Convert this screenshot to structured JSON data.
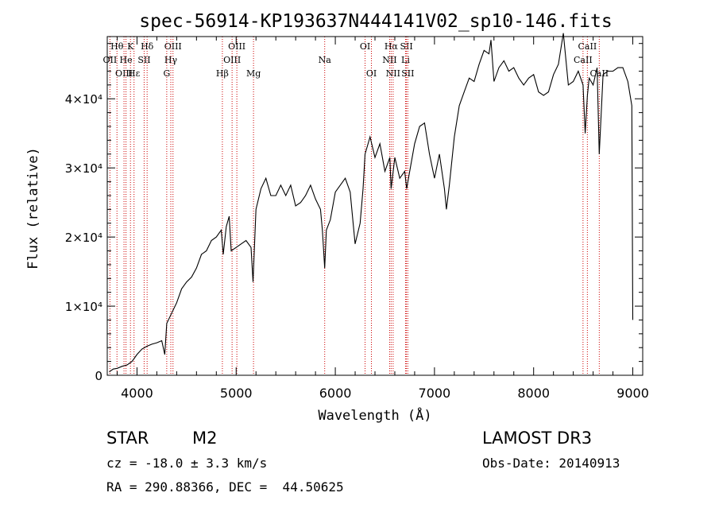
{
  "chart_data": {
    "type": "line",
    "title": "spec-56914-KP193637N444141V02_sp10-146.fits",
    "xlabel": "Wavelength (Å)",
    "ylabel": "Flux (relative)",
    "xlim": [
      3700,
      9100
    ],
    "ylim": [
      0,
      49000
    ],
    "x_ticks": [
      4000,
      5000,
      6000,
      7000,
      8000,
      9000
    ],
    "y_ticks": [
      {
        "value": 0,
        "label": "0"
      },
      {
        "value": 10000,
        "label": "1×10⁴"
      },
      {
        "value": 20000,
        "label": "2×10⁴"
      },
      {
        "value": 30000,
        "label": "3×10⁴"
      },
      {
        "value": 40000,
        "label": "4×10⁴"
      }
    ],
    "series": [
      {
        "name": "flux",
        "x": [
          3720,
          3760,
          3800,
          3850,
          3900,
          3950,
          4000,
          4050,
          4100,
          4150,
          4200,
          4250,
          4280,
          4300,
          4350,
          4400,
          4450,
          4500,
          4550,
          4600,
          4650,
          4700,
          4750,
          4800,
          4850,
          4870,
          4900,
          4930,
          4950,
          5000,
          5050,
          5100,
          5150,
          5170,
          5200,
          5250,
          5300,
          5350,
          5400,
          5450,
          5500,
          5550,
          5600,
          5650,
          5700,
          5750,
          5800,
          5850,
          5870,
          5893,
          5910,
          5950,
          6000,
          6050,
          6100,
          6150,
          6180,
          6200,
          6250,
          6280,
          6300,
          6350,
          6400,
          6450,
          6500,
          6550,
          6563,
          6600,
          6650,
          6700,
          6720,
          6750,
          6800,
          6850,
          6900,
          6950,
          7000,
          7050,
          7100,
          7120,
          7150,
          7200,
          7250,
          7300,
          7350,
          7400,
          7450,
          7500,
          7550,
          7570,
          7600,
          7650,
          7700,
          7750,
          7800,
          7850,
          7900,
          7950,
          8000,
          8050,
          8100,
          8150,
          8200,
          8250,
          8300,
          8350,
          8400,
          8450,
          8498,
          8520,
          8542,
          8560,
          8600,
          8640,
          8662,
          8700,
          8750,
          8800,
          8850,
          8900,
          8950,
          8990,
          9000
        ],
        "y": [
          500,
          900,
          1000,
          1300,
          1500,
          2000,
          3000,
          3800,
          4200,
          4500,
          4700,
          5000,
          3000,
          7500,
          9000,
          10500,
          12500,
          13500,
          14200,
          15500,
          17500,
          18000,
          19500,
          20000,
          21000,
          17500,
          21500,
          23000,
          18000,
          18500,
          19000,
          19500,
          18500,
          13500,
          24000,
          27000,
          28500,
          26000,
          26000,
          27500,
          26000,
          27500,
          24500,
          25000,
          26000,
          27500,
          25500,
          24000,
          21000,
          15500,
          21000,
          22500,
          26500,
          27500,
          28500,
          26500,
          22000,
          19000,
          22000,
          27000,
          32000,
          34500,
          31500,
          33500,
          29500,
          31500,
          27000,
          31500,
          28500,
          29500,
          27000,
          29500,
          33500,
          36000,
          36500,
          32000,
          28500,
          32000,
          27000,
          24000,
          27500,
          34500,
          39000,
          41000,
          43000,
          42500,
          45000,
          47000,
          46500,
          48500,
          42500,
          44500,
          45500,
          44000,
          44500,
          43000,
          42000,
          43000,
          43500,
          41000,
          40500,
          41000,
          43500,
          45000,
          49500,
          42000,
          42500,
          44000,
          42000,
          35000,
          40500,
          43000,
          42000,
          44500,
          32000,
          43500,
          44000,
          44000,
          44500,
          44500,
          42500,
          39000,
          8000
        ]
      }
    ],
    "line_markers": [
      {
        "label": "Hθ",
        "x": 3798,
        "row": 1
      },
      {
        "label": "K",
        "x": 3934,
        "row": 1
      },
      {
        "label": "Hδ",
        "x": 4102,
        "row": 1
      },
      {
        "label": "OIII",
        "x": 4363,
        "row": 1
      },
      {
        "label": "OIII",
        "x": 5007,
        "row": 1
      },
      {
        "label": "OI",
        "x": 6300,
        "row": 1
      },
      {
        "label": "Hα",
        "x": 6563,
        "row": 1
      },
      {
        "label": "SII",
        "x": 6717,
        "row": 1
      },
      {
        "label": "CaII",
        "x": 8542,
        "row": 1
      },
      {
        "label": "OII",
        "x": 3727,
        "row": 2
      },
      {
        "label": "He",
        "x": 3889,
        "row": 2
      },
      {
        "label": "SII",
        "x": 4072,
        "row": 2
      },
      {
        "label": "Hγ",
        "x": 4341,
        "row": 2
      },
      {
        "label": "OIII",
        "x": 4959,
        "row": 2
      },
      {
        "label": "Na",
        "x": 5893,
        "row": 2
      },
      {
        "label": "NII",
        "x": 6548,
        "row": 2
      },
      {
        "label": "Li",
        "x": 6708,
        "row": 2
      },
      {
        "label": "CaII",
        "x": 8498,
        "row": 2
      },
      {
        "label": "OIII",
        "x": 3869,
        "row": 3
      },
      {
        "label": "Hε",
        "x": 3970,
        "row": 3
      },
      {
        "label": "G",
        "x": 4300,
        "row": 3
      },
      {
        "label": "Hβ",
        "x": 4861,
        "row": 3
      },
      {
        "label": "Mg",
        "x": 5175,
        "row": 3
      },
      {
        "label": "OI",
        "x": 6364,
        "row": 3
      },
      {
        "label": "NII",
        "x": 6583,
        "row": 3
      },
      {
        "label": "SII",
        "x": 6731,
        "row": 3
      },
      {
        "label": "CaII",
        "x": 8662,
        "row": 3
      }
    ],
    "colors": {
      "line": "#000000",
      "markers": "#cc0000",
      "axes": "#000000"
    }
  },
  "info": {
    "object_class": "STAR",
    "subclass": "M2",
    "survey": "LAMOST DR3",
    "cz": "cz = -18.0 ± 3.3 km/s",
    "obs_date": "Obs-Date: 20140913",
    "coords": "RA = 290.88366, DEC =  44.50625"
  }
}
